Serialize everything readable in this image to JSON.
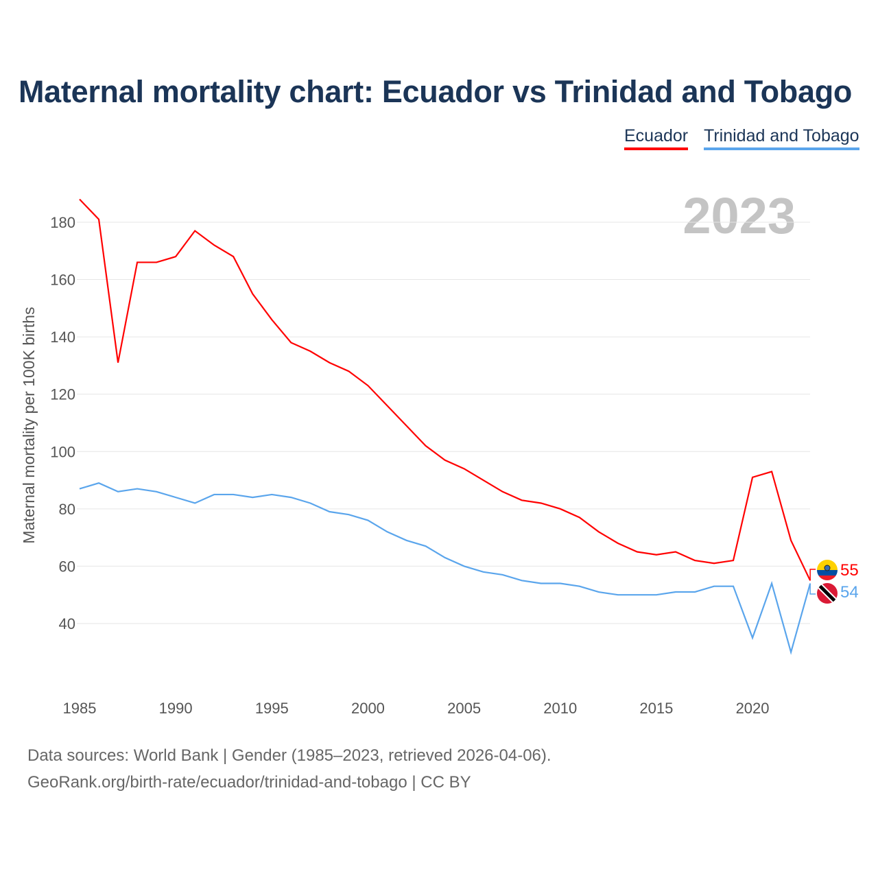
{
  "title": "Maternal mortality chart: Ecuador vs Trinidad and Tobago",
  "year_label": "2023",
  "source_line1": "Data sources: World Bank | Gender (1985–2023, retrieved 2026-04-06).",
  "source_line2": "GeoRank.org/birth-rate/ecuador/trinidad-and-tobago | CC BY",
  "chart_data": {
    "type": "line",
    "title": "Maternal mortality chart: Ecuador vs Trinidad and Tobago",
    "xlabel": "",
    "ylabel": "Maternal mortality per 100K births",
    "x": [
      1985,
      1986,
      1987,
      1988,
      1989,
      1990,
      1991,
      1992,
      1993,
      1994,
      1995,
      1996,
      1997,
      1998,
      1999,
      2000,
      2001,
      2002,
      2003,
      2004,
      2005,
      2006,
      2007,
      2008,
      2009,
      2010,
      2011,
      2012,
      2013,
      2014,
      2015,
      2016,
      2017,
      2018,
      2019,
      2020,
      2021,
      2022,
      2023
    ],
    "xticks": [
      "1985",
      "1990",
      "1995",
      "2000",
      "2005",
      "2010",
      "2015",
      "2020"
    ],
    "yticks": [
      "40",
      "60",
      "80",
      "100",
      "120",
      "140",
      "160",
      "180"
    ],
    "ylim": [
      30,
      190
    ],
    "grid": true,
    "legend_position": "top-right",
    "series": [
      {
        "name": "Ecuador",
        "color": "#ff0000",
        "end_label": "55",
        "values": [
          188,
          181,
          131,
          166,
          166,
          168,
          177,
          172,
          168,
          155,
          146,
          138,
          135,
          131,
          128,
          123,
          116,
          109,
          102,
          97,
          94,
          90,
          86,
          83,
          82,
          80,
          77,
          72,
          68,
          65,
          64,
          65,
          62,
          61,
          62,
          91,
          93,
          69,
          55
        ]
      },
      {
        "name": "Trinidad and Tobago",
        "color": "#5aa5ec",
        "end_label": "54",
        "values": [
          87,
          89,
          86,
          87,
          86,
          84,
          82,
          85,
          85,
          84,
          85,
          84,
          82,
          79,
          78,
          76,
          72,
          69,
          67,
          63,
          60,
          58,
          57,
          55,
          54,
          54,
          53,
          51,
          50,
          50,
          50,
          51,
          51,
          53,
          53,
          35,
          54,
          30,
          54
        ]
      }
    ]
  }
}
